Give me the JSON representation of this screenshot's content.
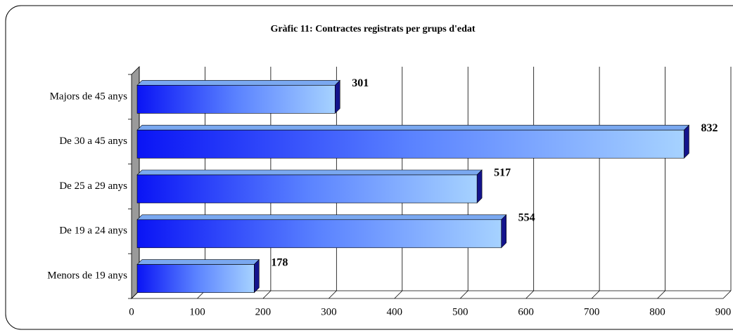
{
  "chart_data": {
    "type": "bar",
    "orientation": "horizontal",
    "title": "Gràfic 11: Contractes registrats per grups d'edat",
    "categories": [
      "Majors de 45 anys",
      "De 30 a 45 anys",
      "De 25 a 29 anys",
      "De 19 a 24 anys",
      "Menors de 19 anys"
    ],
    "values": [
      301,
      832,
      517,
      554,
      178
    ],
    "color": "#1a1aff",
    "xlim": [
      0,
      900
    ],
    "xticks": [
      0,
      100,
      200,
      300,
      400,
      500,
      600,
      700,
      800,
      900
    ],
    "grid": true
  }
}
